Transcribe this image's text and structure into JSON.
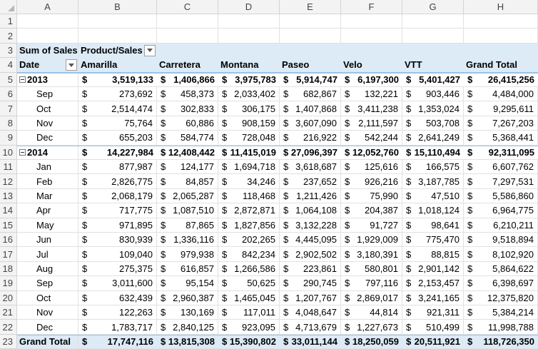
{
  "columns": [
    "A",
    "B",
    "C",
    "D",
    "E",
    "F",
    "G",
    "H"
  ],
  "rows": [
    "1",
    "2",
    "3",
    "4",
    "5",
    "6",
    "7",
    "8",
    "9",
    "10",
    "11",
    "12",
    "13",
    "14",
    "15",
    "16",
    "17",
    "18",
    "19",
    "20",
    "21",
    "22",
    "23"
  ],
  "pivot": {
    "values_label": "Sum of Sales",
    "columns_label": "Product/Sales",
    "rows_label": "Date",
    "currency_symbol": "$",
    "headers": [
      "Amarilla",
      "Carretera",
      "Montana",
      "Paseo",
      "Velo",
      "VTT",
      "Grand Total"
    ],
    "body": [
      {
        "label": "2013",
        "type": "year",
        "values": [
          "3,519,133",
          "1,406,866",
          "3,975,783",
          "5,914,747",
          "6,197,300",
          "5,401,427",
          "26,415,256"
        ]
      },
      {
        "label": "Sep",
        "type": "month",
        "values": [
          "273,692",
          "458,373",
          "2,033,402",
          "682,867",
          "132,221",
          "903,446",
          "4,484,000"
        ]
      },
      {
        "label": "Oct",
        "type": "month",
        "values": [
          "2,514,474",
          "302,833",
          "306,175",
          "1,407,868",
          "3,411,238",
          "1,353,024",
          "9,295,611"
        ]
      },
      {
        "label": "Nov",
        "type": "month",
        "values": [
          "75,764",
          "60,886",
          "908,159",
          "3,607,090",
          "2,111,597",
          "503,708",
          "7,267,203"
        ]
      },
      {
        "label": "Dec",
        "type": "month",
        "values": [
          "655,203",
          "584,774",
          "728,048",
          "216,922",
          "542,244",
          "2,641,249",
          "5,368,441"
        ]
      },
      {
        "label": "2014",
        "type": "year",
        "values": [
          "14,227,984",
          "12,408,442",
          "11,415,019",
          "27,096,397",
          "12,052,760",
          "15,110,494",
          "92,311,095"
        ]
      },
      {
        "label": "Jan",
        "type": "month",
        "values": [
          "877,987",
          "124,177",
          "1,694,718",
          "3,618,687",
          "125,616",
          "166,575",
          "6,607,762"
        ]
      },
      {
        "label": "Feb",
        "type": "month",
        "values": [
          "2,826,775",
          "84,857",
          "34,246",
          "237,652",
          "926,216",
          "3,187,785",
          "7,297,531"
        ]
      },
      {
        "label": "Mar",
        "type": "month",
        "values": [
          "2,068,179",
          "2,065,287",
          "118,468",
          "1,211,426",
          "75,990",
          "47,510",
          "5,586,860"
        ]
      },
      {
        "label": "Apr",
        "type": "month",
        "values": [
          "717,775",
          "1,087,510",
          "2,872,871",
          "1,064,108",
          "204,387",
          "1,018,124",
          "6,964,775"
        ]
      },
      {
        "label": "May",
        "type": "month",
        "values": [
          "971,895",
          "87,865",
          "1,827,856",
          "3,132,228",
          "91,727",
          "98,641",
          "6,210,211"
        ]
      },
      {
        "label": "Jun",
        "type": "month",
        "values": [
          "830,939",
          "1,336,116",
          "202,265",
          "4,445,095",
          "1,929,009",
          "775,470",
          "9,518,894"
        ]
      },
      {
        "label": "Jul",
        "type": "month",
        "values": [
          "109,040",
          "979,938",
          "842,234",
          "2,902,502",
          "3,180,391",
          "88,815",
          "8,102,920"
        ]
      },
      {
        "label": "Aug",
        "type": "month",
        "values": [
          "275,375",
          "616,857",
          "1,266,586",
          "223,861",
          "580,801",
          "2,901,142",
          "5,864,622"
        ]
      },
      {
        "label": "Sep",
        "type": "month",
        "values": [
          "3,011,600",
          "95,154",
          "50,625",
          "290,745",
          "797,116",
          "2,153,457",
          "6,398,697"
        ]
      },
      {
        "label": "Oct",
        "type": "month",
        "values": [
          "632,439",
          "2,960,387",
          "1,465,045",
          "1,207,767",
          "2,869,017",
          "3,241,165",
          "12,375,820"
        ]
      },
      {
        "label": "Nov",
        "type": "month",
        "values": [
          "122,263",
          "130,169",
          "117,011",
          "4,048,647",
          "44,814",
          "921,311",
          "5,384,214"
        ]
      },
      {
        "label": "Dec",
        "type": "month",
        "values": [
          "1,783,717",
          "2,840,125",
          "923,095",
          "4,713,679",
          "1,227,673",
          "510,499",
          "11,998,788"
        ]
      },
      {
        "label": "Grand Total",
        "type": "total",
        "values": [
          "17,747,116",
          "13,815,308",
          "15,390,802",
          "33,011,144",
          "18,250,059",
          "20,511,921",
          "118,726,350"
        ]
      }
    ]
  }
}
